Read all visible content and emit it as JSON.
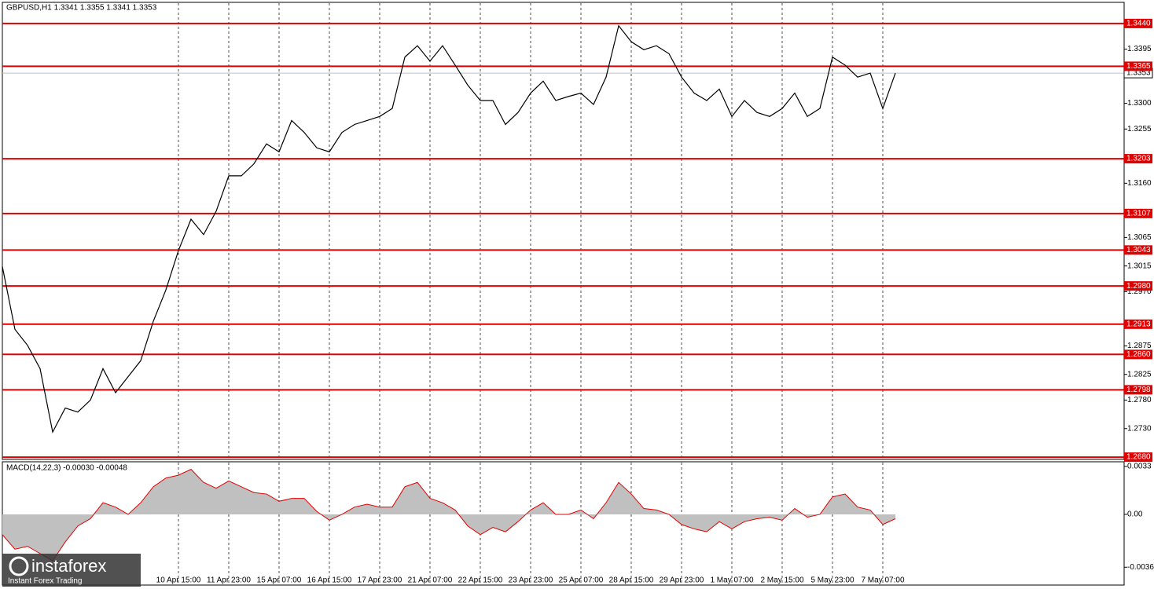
{
  "chart_data": [
    {
      "type": "line",
      "title": "GBPUSD,H1  1.3341 1.3355 1.3341 1.3353",
      "color": "#000000",
      "categories": [
        null,
        null,
        null,
        null,
        null,
        null,
        null,
        null,
        null,
        null,
        null,
        null,
        null,
        null,
        "10 Apr 15:00",
        null,
        null,
        null,
        "11 Apr 23:00",
        null,
        null,
        null,
        "15 Apr 07:00",
        null,
        null,
        null,
        "16 Apr 15:00",
        null,
        null,
        null,
        "17 Apr 23:00",
        null,
        null,
        null,
        "21 Apr 07:00",
        null,
        null,
        null,
        "22 Apr 15:00",
        null,
        null,
        null,
        "23 Apr 23:00",
        null,
        null,
        null,
        "25 Apr 07:00",
        null,
        null,
        null,
        "28 Apr 15:00",
        null,
        null,
        null,
        "29 Apr 23:00",
        null,
        null,
        null,
        "1 May 07:00",
        null,
        null,
        null,
        "2 May 15:00",
        null,
        null,
        null,
        "5 May 23:00",
        null,
        null,
        null,
        "7 May 07:00",
        null
      ],
      "values": [
        1.3014,
        1.2904,
        1.2876,
        1.2835,
        1.2724,
        1.2766,
        1.2759,
        1.278,
        1.2835,
        1.2793,
        1.2821,
        1.2849,
        1.2918,
        1.2973,
        1.3042,
        1.3097,
        1.307,
        1.3111,
        1.3173,
        1.3173,
        1.3194,
        1.3229,
        1.3215,
        1.327,
        1.3249,
        1.3222,
        1.3215,
        1.3249,
        1.3263,
        1.327,
        1.3277,
        1.3291,
        1.3381,
        1.3401,
        1.3374,
        1.3401,
        1.3367,
        1.3332,
        1.3305,
        1.3305,
        1.3263,
        1.3284,
        1.3318,
        1.3339,
        1.3305,
        1.3312,
        1.3318,
        1.3298,
        1.3346,
        1.3436,
        1.3408,
        1.3394,
        1.3401,
        1.3387,
        1.3346,
        1.3318,
        1.3305,
        1.3325,
        1.3277,
        1.3305,
        1.3284,
        1.3277,
        1.3291,
        1.3318,
        1.3277,
        1.3291,
        1.3381,
        1.3367,
        1.3346,
        1.3353,
        1.3291,
        1.3353
      ],
      "ylim": [
        1.2676,
        1.3477
      ],
      "yticks": [
        1.3395,
        {
          "value": 1.33,
          "label": "1.3300"
        },
        1.3255,
        {
          "value": 1.316,
          "label": "1.3160"
        },
        1.3065,
        1.3015,
        {
          "value": 1.297,
          "label": "1.2970"
        },
        1.2875,
        1.2825,
        {
          "value": 1.278,
          "label": "1.2780"
        },
        {
          "value": 1.273,
          "label": "1.2730"
        }
      ],
      "levels": [
        {
          "value": 1.344,
          "label": "1.3440"
        },
        1.3365,
        1.3203,
        1.3107,
        1.3043,
        {
          "value": 1.298,
          "label": "1.2980"
        },
        1.2913,
        {
          "value": 1.286,
          "label": "1.2860"
        },
        1.2798,
        {
          "value": 1.268,
          "label": "1.2680"
        }
      ],
      "level_color": "#e00000",
      "last_price": 1.3353,
      "grid": true
    },
    {
      "type": "area",
      "title": "MACD(14,22,3) -0.00030 -0.00048",
      "color": "#c0c0c0",
      "line_color": "#e00000",
      "values": [
        -0.0014,
        -0.0024,
        -0.0022,
        -0.0027,
        -0.0032,
        -0.0019,
        -0.0008,
        -0.0003,
        0.0008,
        0.0005,
        0,
        0.0008,
        0.0019,
        0.0025,
        0.0027,
        0.0031,
        0.0022,
        0.0018,
        0.0023,
        0.0019,
        0.0015,
        0.0014,
        0.0009,
        0.0011,
        0.0011,
        0.0002,
        -0.0004,
        0,
        0.0005,
        0.0007,
        0.0005,
        0.0005,
        0.0019,
        0.0022,
        0.0011,
        0.0008,
        0.0003,
        -0.0008,
        -0.0014,
        -0.0009,
        -0.0012,
        -0.0005,
        0.0003,
        0.0008,
        0,
        0,
        0.0003,
        -0.0003,
        0.0008,
        0.0022,
        0.0014,
        0.0004,
        0.0003,
        0,
        -0.0007,
        -0.001,
        -0.0012,
        -0.0005,
        -0.001,
        -0.0005,
        -0.0003,
        -0.0002,
        -0.0004,
        0.0004,
        -0.0002,
        0,
        0.0012,
        0.0014,
        0.0005,
        0.0003,
        -0.0007,
        -0.0003
      ],
      "ylim": [
        -0.00487,
        0.00362
      ],
      "yticks": [
        0.0033,
        {
          "value": 0,
          "label": "0.00"
        },
        -0.00364
      ]
    }
  ],
  "watermark": {
    "brand": "instaforex",
    "tagline": "Instant Forex Trading"
  }
}
